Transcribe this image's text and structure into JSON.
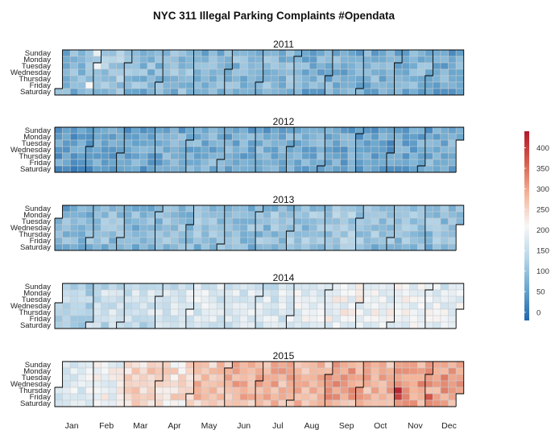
{
  "chart_data": {
    "type": "heatmap",
    "title": "NYC 311 Illegal Parking Complaints    #Opendata",
    "years": [
      "2011",
      "2012",
      "2013",
      "2014",
      "2015"
    ],
    "weekdays": [
      "Sunday",
      "Monday",
      "Tuesday",
      "Wednesday",
      "Thursday",
      "Friday",
      "Saturday"
    ],
    "months": [
      "Jan",
      "Feb",
      "Mar",
      "Apr",
      "May",
      "Jun",
      "Jul",
      "Aug",
      "Sep",
      "Oct",
      "Nov",
      "Dec"
    ],
    "legend": {
      "ticks": [
        0,
        50,
        100,
        150,
        200,
        250,
        300,
        350,
        400
      ],
      "range": [
        -20,
        440
      ],
      "colors": [
        "#2166ac",
        "#6aa6cd",
        "#b9d7e9",
        "#f7f7f7",
        "#f4b59a",
        "#d6604d",
        "#b2182b"
      ]
    },
    "yearly_typical_values": {
      "2011": 90,
      "2012": 65,
      "2013": 95,
      "2014": 165,
      "2015": 265
    },
    "monthly_mean_values": [
      {
        "year": "2011",
        "values": [
          90,
          110,
          90,
          95,
          85,
          85,
          85,
          75,
          75,
          80,
          80,
          70
        ]
      },
      {
        "year": "2012",
        "values": [
          50,
          60,
          65,
          70,
          75,
          70,
          75,
          70,
          60,
          55,
          65,
          70
        ]
      },
      {
        "year": "2013",
        "values": [
          80,
          90,
          85,
          90,
          95,
          95,
          95,
          100,
          110,
          100,
          95,
          95
        ]
      },
      {
        "year": "2014",
        "values": [
          130,
          155,
          155,
          165,
          175,
          170,
          170,
          185,
          205,
          195,
          200,
          185
        ]
      },
      {
        "year": "2015",
        "values": [
          180,
          200,
          250,
          245,
          270,
          285,
          285,
          285,
          300,
          285,
          310,
          305
        ]
      }
    ],
    "notable_days": [
      {
        "year": "2011",
        "date": "2011-01-30",
        "value": 190
      },
      {
        "year": "2011",
        "date": "2011-02-01",
        "value": 200
      },
      {
        "year": "2011",
        "date": "2011-01-28",
        "value": 210
      },
      {
        "year": "2012",
        "date": "2012-10-30",
        "value": 15
      },
      {
        "year": "2012",
        "date": "2012-10-31",
        "value": 20
      },
      {
        "year": "2015",
        "date": "2015-11-05",
        "value": 425
      },
      {
        "year": "2015",
        "date": "2015-11-06",
        "value": 395
      },
      {
        "year": "2015",
        "date": "2015-12-04",
        "value": 375
      }
    ]
  }
}
